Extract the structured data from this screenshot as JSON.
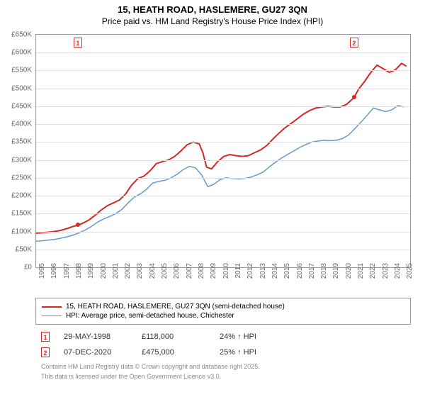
{
  "title": "15, HEATH ROAD, HASLEMERE, GU27 3QN",
  "subtitle": "Price paid vs. HM Land Registry's House Price Index (HPI)",
  "chart": {
    "type": "line",
    "background_color": "#ffffff",
    "grid_color": "#dddddd",
    "axis_color": "#999999",
    "tick_color": "#666666",
    "tick_fontsize": 10,
    "title_fontsize": 13,
    "x": {
      "min": 1995,
      "max": 2025.5,
      "ticks": [
        1995,
        1996,
        1997,
        1998,
        1999,
        2000,
        2001,
        2002,
        2003,
        2004,
        2005,
        2006,
        2007,
        2008,
        2009,
        2010,
        2011,
        2012,
        2013,
        2014,
        2015,
        2016,
        2017,
        2018,
        2019,
        2020,
        2021,
        2022,
        2023,
        2024,
        2025
      ]
    },
    "y": {
      "min": 0,
      "max": 650000,
      "tick_step": 50000,
      "tick_prefix": "£",
      "tick_suffix": "K",
      "tick_divisor": 1000
    },
    "series": [
      {
        "name": "15, HEATH ROAD, HASLEMERE, GU27 3QN (semi-detached house)",
        "color": "#d62728",
        "line_width": 2,
        "points": [
          [
            1995,
            95000
          ],
          [
            1995.5,
            97000
          ],
          [
            1996,
            98000
          ],
          [
            1996.5,
            100000
          ],
          [
            1997,
            103000
          ],
          [
            1997.5,
            108000
          ],
          [
            1998,
            114000
          ],
          [
            1998.4,
            118000
          ],
          [
            1998.8,
            123000
          ],
          [
            1999.3,
            132000
          ],
          [
            1999.8,
            145000
          ],
          [
            2000.3,
            160000
          ],
          [
            2000.8,
            172000
          ],
          [
            2001.3,
            180000
          ],
          [
            2001.8,
            188000
          ],
          [
            2002.3,
            205000
          ],
          [
            2002.8,
            230000
          ],
          [
            2003.3,
            248000
          ],
          [
            2003.8,
            255000
          ],
          [
            2004.3,
            270000
          ],
          [
            2004.8,
            290000
          ],
          [
            2005.3,
            295000
          ],
          [
            2005.8,
            300000
          ],
          [
            2006.3,
            310000
          ],
          [
            2006.8,
            325000
          ],
          [
            2007.3,
            342000
          ],
          [
            2007.8,
            350000
          ],
          [
            2008.3,
            345000
          ],
          [
            2008.6,
            320000
          ],
          [
            2008.9,
            280000
          ],
          [
            2009.3,
            275000
          ],
          [
            2009.8,
            295000
          ],
          [
            2010.3,
            310000
          ],
          [
            2010.8,
            315000
          ],
          [
            2011.3,
            312000
          ],
          [
            2011.8,
            310000
          ],
          [
            2012.3,
            312000
          ],
          [
            2012.8,
            320000
          ],
          [
            2013.3,
            328000
          ],
          [
            2013.8,
            340000
          ],
          [
            2014.3,
            358000
          ],
          [
            2014.8,
            375000
          ],
          [
            2015.3,
            390000
          ],
          [
            2015.8,
            402000
          ],
          [
            2016.3,
            415000
          ],
          [
            2016.8,
            428000
          ],
          [
            2017.3,
            438000
          ],
          [
            2017.8,
            445000
          ],
          [
            2018.3,
            448000
          ],
          [
            2018.8,
            450000
          ],
          [
            2019.3,
            448000
          ],
          [
            2019.8,
            448000
          ],
          [
            2020.3,
            455000
          ],
          [
            2020.8,
            470000
          ],
          [
            2020.93,
            475000
          ],
          [
            2021.3,
            498000
          ],
          [
            2021.8,
            520000
          ],
          [
            2022.3,
            545000
          ],
          [
            2022.8,
            565000
          ],
          [
            2023.3,
            555000
          ],
          [
            2023.8,
            545000
          ],
          [
            2024.3,
            552000
          ],
          [
            2024.8,
            570000
          ],
          [
            2025.2,
            562000
          ]
        ]
      },
      {
        "name": "HPI: Average price, semi-detached house, Chichester",
        "color": "#6699cc",
        "line_width": 1.5,
        "points": [
          [
            1995,
            73000
          ],
          [
            1995.5,
            74000
          ],
          [
            1996,
            76000
          ],
          [
            1996.5,
            78000
          ],
          [
            1997,
            81000
          ],
          [
            1997.5,
            85000
          ],
          [
            1998,
            90000
          ],
          [
            1998.5,
            96000
          ],
          [
            1999,
            104000
          ],
          [
            1999.5,
            114000
          ],
          [
            2000,
            126000
          ],
          [
            2000.5,
            135000
          ],
          [
            2001,
            142000
          ],
          [
            2001.5,
            150000
          ],
          [
            2002,
            162000
          ],
          [
            2002.5,
            180000
          ],
          [
            2003,
            196000
          ],
          [
            2003.5,
            205000
          ],
          [
            2004,
            218000
          ],
          [
            2004.5,
            235000
          ],
          [
            2005,
            240000
          ],
          [
            2005.5,
            243000
          ],
          [
            2006,
            250000
          ],
          [
            2006.5,
            260000
          ],
          [
            2007,
            273000
          ],
          [
            2007.5,
            282000
          ],
          [
            2008,
            278000
          ],
          [
            2008.5,
            258000
          ],
          [
            2009,
            225000
          ],
          [
            2009.5,
            232000
          ],
          [
            2010,
            245000
          ],
          [
            2010.5,
            250000
          ],
          [
            2011,
            248000
          ],
          [
            2011.5,
            247000
          ],
          [
            2012,
            248000
          ],
          [
            2012.5,
            252000
          ],
          [
            2013,
            258000
          ],
          [
            2013.5,
            266000
          ],
          [
            2014,
            280000
          ],
          [
            2014.5,
            293000
          ],
          [
            2015,
            305000
          ],
          [
            2015.5,
            315000
          ],
          [
            2016,
            325000
          ],
          [
            2016.5,
            335000
          ],
          [
            2017,
            343000
          ],
          [
            2017.5,
            350000
          ],
          [
            2018,
            353000
          ],
          [
            2018.5,
            355000
          ],
          [
            2019,
            354000
          ],
          [
            2019.5,
            355000
          ],
          [
            2020,
            360000
          ],
          [
            2020.5,
            370000
          ],
          [
            2021,
            388000
          ],
          [
            2021.5,
            406000
          ],
          [
            2022,
            425000
          ],
          [
            2022.5,
            445000
          ],
          [
            2023,
            440000
          ],
          [
            2023.5,
            435000
          ],
          [
            2024,
            440000
          ],
          [
            2024.5,
            452000
          ],
          [
            2025,
            448000
          ]
        ]
      }
    ],
    "markers": [
      {
        "n": "1",
        "x": 1998.4,
        "y": 118000
      },
      {
        "n": "2",
        "x": 2020.93,
        "y": 475000
      }
    ]
  },
  "legend": {
    "rows": [
      {
        "color": "#d62728",
        "width": 2,
        "label": "15, HEATH ROAD, HASLEMERE, GU27 3QN (semi-detached house)"
      },
      {
        "color": "#6699cc",
        "width": 1.5,
        "label": "HPI: Average price, semi-detached house, Chichester"
      }
    ]
  },
  "sales": [
    {
      "n": "1",
      "date": "29-MAY-1998",
      "price": "£118,000",
      "diff": "24% ↑ HPI"
    },
    {
      "n": "2",
      "date": "07-DEC-2020",
      "price": "£475,000",
      "diff": "25% ↑ HPI"
    }
  ],
  "footer1": "Contains HM Land Registry data © Crown copyright and database right 2025.",
  "footer2": "This data is licensed under the Open Government Licence v3.0."
}
